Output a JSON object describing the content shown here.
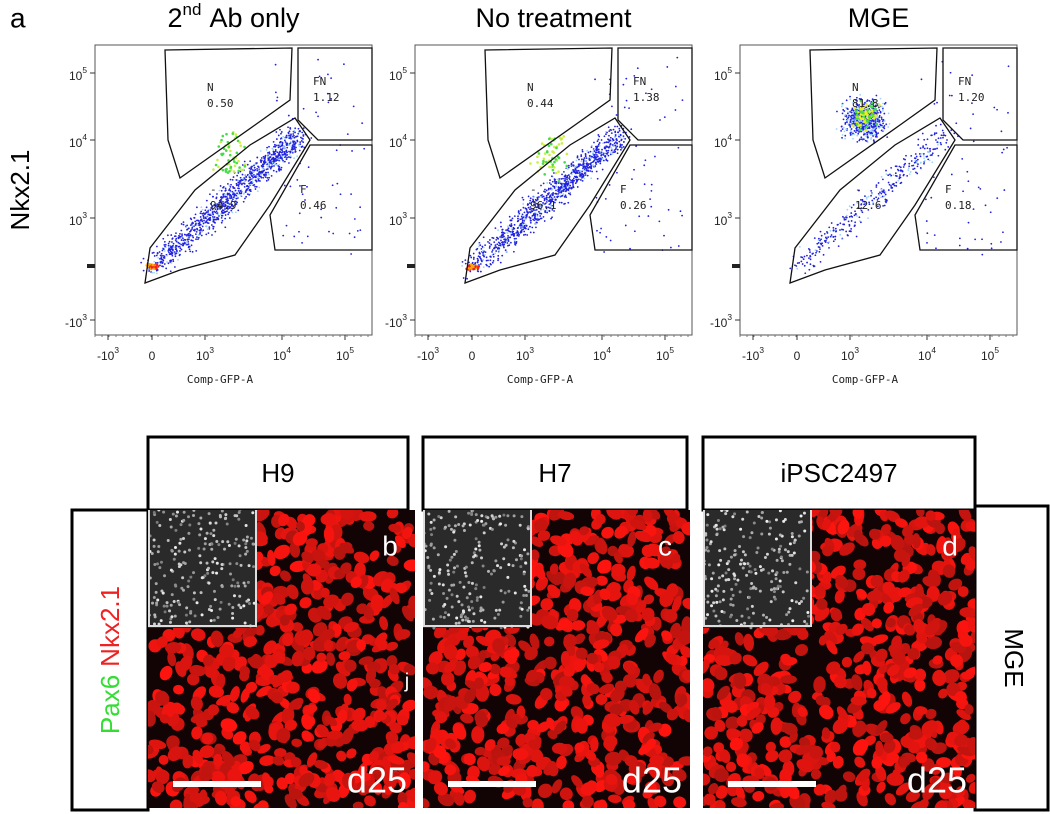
{
  "panel_a": {
    "label": "a",
    "y_axis_label": "Nkx2.1",
    "x_axis_label": "Comp-GFP-A",
    "y_ticks": [
      {
        "base": "10",
        "exp": "5"
      },
      {
        "base": "10",
        "exp": "4"
      },
      {
        "base": "10",
        "exp": "3"
      },
      {
        "base": "-10",
        "exp": "3"
      }
    ],
    "x_ticks": [
      {
        "base": "-10",
        "exp": "3"
      },
      {
        "base": "0"
      },
      {
        "base": "10",
        "exp": "3"
      },
      {
        "base": "10",
        "exp": "4"
      },
      {
        "base": "10",
        "exp": "5"
      }
    ],
    "plots": [
      {
        "title": {
          "base": "2",
          "sup": "nd",
          "rest": "Ab only"
        },
        "gates": [
          {
            "name": "N",
            "value": "0.50"
          },
          {
            "name": "FN",
            "value": "1.12"
          },
          {
            "name": "-",
            "value": "94.9"
          },
          {
            "name": "F",
            "value": "0.46"
          }
        ]
      },
      {
        "title": {
          "text": "No treatment"
        },
        "gates": [
          {
            "name": "N",
            "value": "0.44"
          },
          {
            "name": "FN",
            "value": "1.38"
          },
          {
            "name": "-",
            "value": "96.1"
          },
          {
            "name": "F",
            "value": "0.26"
          }
        ]
      },
      {
        "title": {
          "text": "MGE"
        },
        "gates": [
          {
            "name": "N",
            "value": "81.8"
          },
          {
            "name": "FN",
            "value": "1.20"
          },
          {
            "name": "-",
            "value": "12.6"
          },
          {
            "name": "F",
            "value": "0.18"
          }
        ]
      }
    ]
  },
  "panel_bcd": {
    "row_label": {
      "green": "Pax6",
      "red": "Nkx2.1"
    },
    "column_label": "MGE",
    "stray_mark": "j",
    "images": [
      {
        "header": "H9",
        "letter": "b",
        "stage": "d25"
      },
      {
        "header": "H7",
        "letter": "c",
        "stage": "d25"
      },
      {
        "header": "iPSC2497",
        "letter": "d",
        "stage": "d25"
      }
    ]
  }
}
